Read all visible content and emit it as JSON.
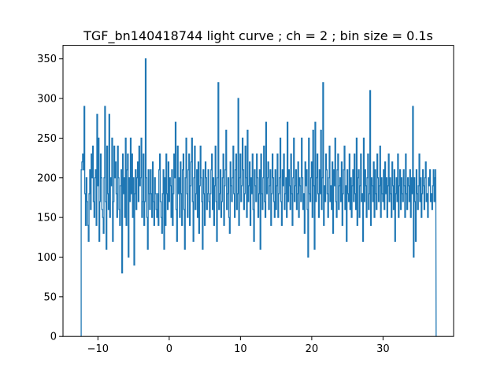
{
  "chart_data": {
    "type": "line",
    "style": "step",
    "title": "TGF_bn140418744 light curve ; ch = 2 ; bin size = 0.1s",
    "xlabel": "",
    "ylabel": "",
    "xlim": [
      -14.9,
      39.9
    ],
    "ylim": [
      0,
      367
    ],
    "xticks": [
      -10,
      0,
      10,
      20,
      30
    ],
    "xtick_labels": [
      "−10",
      "0",
      "10",
      "20",
      "30"
    ],
    "yticks": [
      0,
      50,
      100,
      150,
      200,
      250,
      300,
      350
    ],
    "ytick_labels": [
      "0",
      "50",
      "100",
      "150",
      "200",
      "250",
      "300",
      "350"
    ],
    "grid": false,
    "legend": "none",
    "bin_size": 0.1,
    "x_start": -12.4,
    "x_end": 37.4,
    "series": [
      {
        "color": "#1f77b4",
        "values": [
          0,
          210,
          220,
          230,
          210,
          290,
          180,
          140,
          200,
          170,
          140,
          120,
          180,
          210,
          160,
          230,
          200,
          240,
          170,
          150,
          200,
          210,
          140,
          280,
          190,
          250,
          120,
          170,
          230,
          200,
          160,
          150,
          130,
          200,
          290,
          170,
          110,
          240,
          180,
          160,
          280,
          150,
          200,
          190,
          250,
          120,
          170,
          240,
          200,
          220,
          180,
          150,
          240,
          200,
          160,
          140,
          190,
          210,
          80,
          230,
          180,
          200,
          150,
          250,
          140,
          210,
          230,
          100,
          200,
          170,
          250,
          180,
          230,
          150,
          200,
          90,
          180,
          210,
          160,
          200,
          220,
          170,
          240,
          190,
          200,
          250,
          150,
          170,
          230,
          140,
          170,
          350,
          200,
          150,
          110,
          210,
          180,
          160,
          210,
          180,
          150,
          220,
          170,
          140,
          200,
          180,
          160,
          150,
          180,
          140,
          210,
          230,
          170,
          150,
          130,
          180,
          210,
          110,
          200,
          140,
          230,
          180,
          160,
          220,
          170,
          200,
          190,
          150,
          210,
          140,
          180,
          230,
          200,
          270,
          160,
          120,
          240,
          180,
          200,
          150,
          220,
          180,
          140,
          210,
          230,
          160,
          110,
          200,
          250,
          180,
          150,
          210,
          230,
          140,
          190,
          220,
          250,
          170,
          120,
          200,
          240,
          160,
          180,
          210,
          150,
          220,
          130,
          190,
          240,
          200,
          170,
          110,
          210,
          180,
          140,
          220,
          200,
          160,
          180,
          210,
          170,
          150,
          180,
          210,
          230,
          160,
          200,
          140,
          190,
          240,
          170,
          120,
          200,
          320,
          160,
          180,
          210,
          150,
          170,
          200,
          230,
          140,
          190,
          210,
          260,
          160,
          180,
          200,
          150,
          130,
          220,
          190,
          170,
          200,
          240,
          180,
          150,
          210,
          230,
          160,
          180,
          300,
          140,
          200,
          230,
          170,
          190,
          250,
          210,
          160,
          180,
          240,
          200,
          150,
          260,
          170,
          190,
          220,
          140,
          200,
          180,
          230,
          160,
          120,
          210,
          190,
          170,
          230,
          200,
          150,
          180,
          210,
          110,
          230,
          180,
          160,
          200,
          240,
          170,
          150,
          270,
          180,
          200,
          220,
          160,
          190,
          210,
          140,
          180,
          230,
          200,
          170,
          150,
          210,
          160,
          190,
          230,
          150,
          180,
          200,
          250,
          170,
          140,
          210,
          190,
          230,
          160,
          180,
          200,
          150,
          270,
          170,
          210,
          190,
          160,
          230,
          180,
          140,
          200,
          250,
          170,
          190,
          210,
          160,
          180,
          220,
          150,
          200,
          190,
          170,
          250,
          200,
          160,
          180,
          130,
          220,
          190,
          210,
          160,
          100,
          250,
          180,
          170,
          200,
          220,
          150,
          260,
          190,
          110,
          270,
          170,
          200,
          230,
          180,
          150,
          210,
          180,
          260,
          160,
          200,
          320,
          140,
          190,
          170,
          230,
          210,
          180,
          150,
          200,
          240,
          170,
          190,
          160,
          220,
          130,
          210,
          190,
          250,
          170,
          150,
          210,
          230,
          160,
          190,
          200,
          170,
          220,
          140,
          180,
          210,
          240,
          160,
          190,
          120,
          210,
          180,
          170,
          230,
          160,
          200,
          150,
          190,
          210,
          170,
          230,
          180,
          160,
          250,
          140,
          200,
          210,
          150,
          190,
          230,
          170,
          180,
          120,
          250,
          170,
          210,
          190,
          150,
          200,
          230,
          160,
          180,
          310,
          140,
          200,
          190,
          170,
          220,
          150,
          210,
          180,
          160,
          230,
          200,
          170,
          190,
          240,
          150,
          200,
          180,
          170,
          210,
          160,
          220,
          180,
          200,
          150,
          190,
          230,
          170,
          200,
          180,
          150,
          220,
          190,
          160,
          210,
          120,
          180,
          200,
          170,
          230,
          150,
          190,
          210,
          160,
          200,
          180,
          170,
          210,
          190,
          150,
          230,
          180,
          160,
          200,
          190,
          170,
          210,
          150,
          200,
          180,
          290,
          100,
          200,
          170,
          120,
          210,
          180,
          160,
          190,
          230,
          170,
          200,
          150,
          180,
          210,
          190,
          160,
          200,
          220,
          170,
          180,
          150,
          200,
          190,
          210,
          170,
          180,
          160,
          190,
          210,
          170,
          200,
          210,
          0
        ]
      }
    ]
  }
}
